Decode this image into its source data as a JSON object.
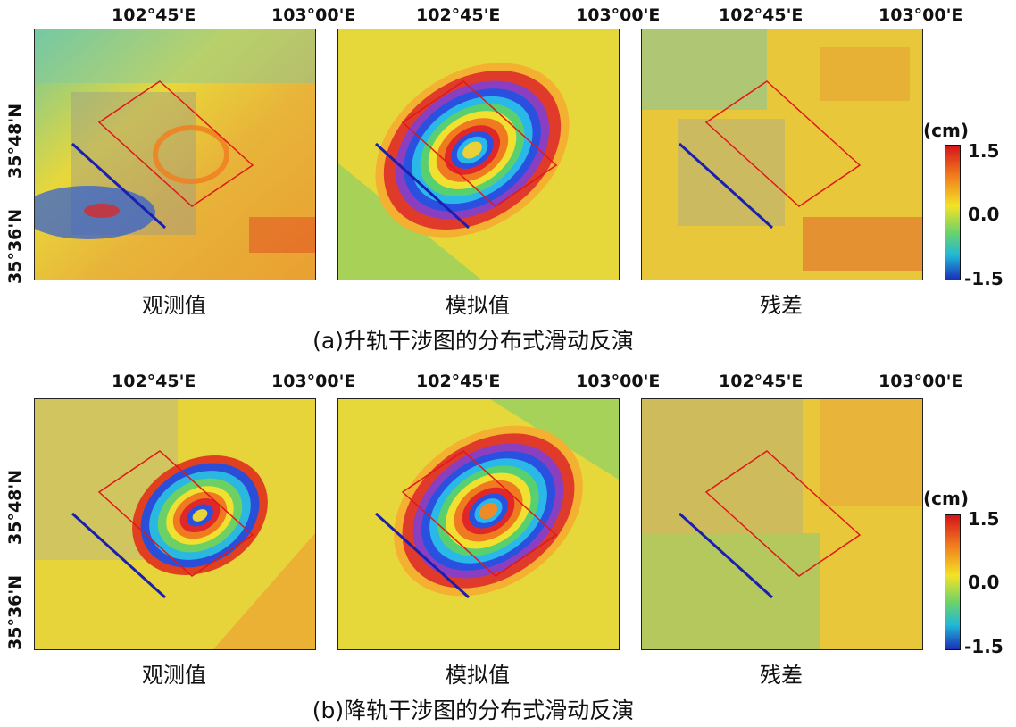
{
  "rows": [
    {
      "caption": "(a)升轨干涉图的分布式滑动反演",
      "x_ticks": [
        "102°45'E",
        "103°00'E"
      ],
      "y_ticks": [
        "35°48'N",
        "35°36'N"
      ],
      "panels": [
        {
          "title": "观测值"
        },
        {
          "title": "模拟值"
        },
        {
          "title": "残差"
        }
      ],
      "colorbar": {
        "unit": "(cm)",
        "max": "1.5",
        "mid": "0.0",
        "min": "-1.5"
      }
    },
    {
      "caption": "(b)降轨干涉图的分布式滑动反演",
      "x_ticks": [
        "102°45'E",
        "103°00'E"
      ],
      "y_ticks": [
        "35°48'N",
        "35°36'N"
      ],
      "panels": [
        {
          "title": "观测值"
        },
        {
          "title": "模拟值"
        },
        {
          "title": "残差"
        }
      ],
      "colorbar": {
        "unit": "(cm)",
        "max": "1.5",
        "mid": "0.0",
        "min": "-1.5"
      }
    }
  ],
  "colors": {
    "fault_trace": "#1a1fb0",
    "fault_plane_outline": "#e01818",
    "background_field": "#e8dc3a"
  }
}
